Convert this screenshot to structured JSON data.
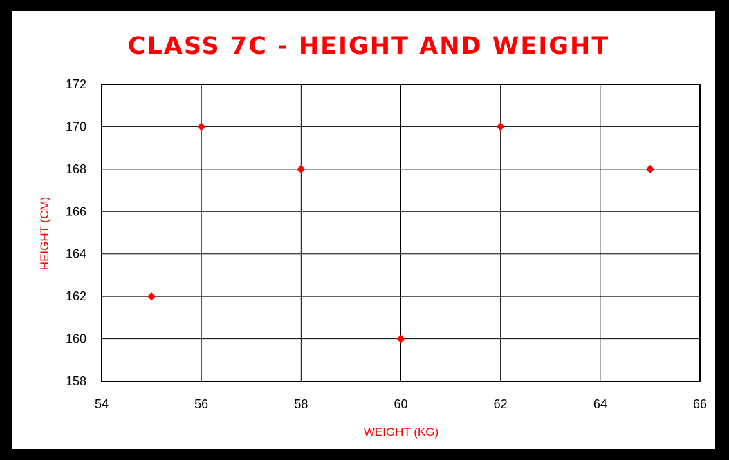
{
  "colors": {
    "background": "#ffffff",
    "border": "#000000",
    "title": "#ff0000",
    "marker": "#ff0000",
    "axis_label": "#ff0000",
    "grid": "#000000"
  },
  "chart_data": {
    "type": "scatter",
    "title": "CLASS 7C - HEIGHT AND WEIGHT",
    "xlabel": "WEIGHT (KG)",
    "ylabel": "HEIGHT (CM)",
    "xlim": [
      54,
      66
    ],
    "ylim": [
      158,
      172
    ],
    "xticks": [
      "54",
      "56",
      "58",
      "60",
      "62",
      "64",
      "66"
    ],
    "yticks": [
      "158",
      "160",
      "162",
      "164",
      "166",
      "168",
      "170",
      "172"
    ],
    "grid": true,
    "marker": "diamond",
    "series": [
      {
        "points": [
          {
            "x": 55,
            "y": 162
          },
          {
            "x": 56,
            "y": 170
          },
          {
            "x": 58,
            "y": 168
          },
          {
            "x": 60,
            "y": 160
          },
          {
            "x": 62,
            "y": 170
          },
          {
            "x": 65,
            "y": 168
          }
        ]
      }
    ]
  }
}
